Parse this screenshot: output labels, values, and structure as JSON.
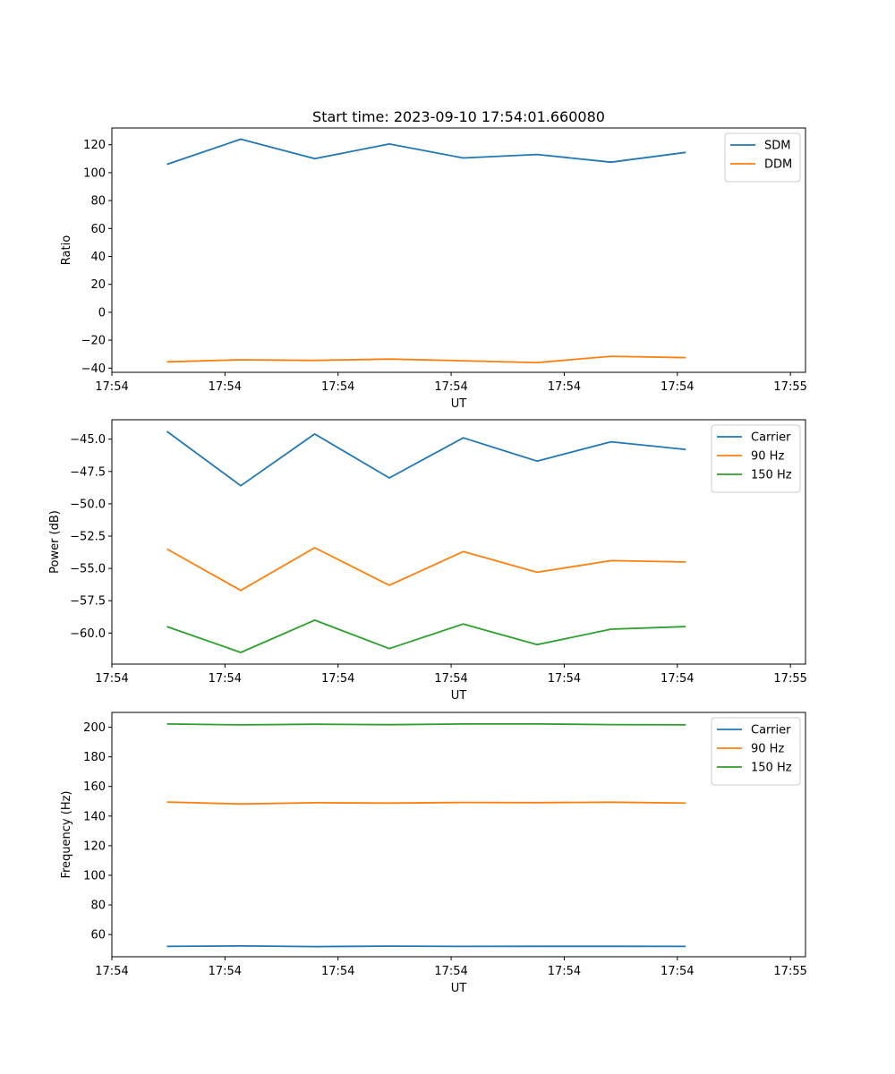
{
  "chart_data": [
    {
      "type": "line",
      "title": "Start time: 2023-09-10 17:54:01.660080",
      "xlabel": "UT",
      "ylabel": "Ratio",
      "xlim": [
        0,
        9.2
      ],
      "ylim": [
        -43,
        132
      ],
      "xticks": [
        0,
        1.5,
        3,
        4.5,
        6,
        7.5,
        9
      ],
      "xtick_labels": [
        "17:54",
        "17:54",
        "17:54",
        "17:54",
        "17:54",
        "17:54",
        "17:55"
      ],
      "yticks": [
        -40,
        -20,
        0,
        20,
        40,
        60,
        80,
        100,
        120
      ],
      "ytick_labels": [
        "−40",
        "−20",
        "0",
        "20",
        "40",
        "60",
        "80",
        "100",
        "120"
      ],
      "x": [
        0.73,
        1.71,
        2.69,
        3.68,
        4.66,
        5.64,
        6.62,
        7.61
      ],
      "legend_position": "top-right",
      "series": [
        {
          "name": "SDM",
          "color": "#1f77b4",
          "values": [
            106,
            124,
            110,
            120.5,
            110.5,
            113,
            107.5,
            114.5
          ]
        },
        {
          "name": "DDM",
          "color": "#ff7f0e",
          "values": [
            -35.5,
            -34,
            -34.5,
            -33.5,
            -34.7,
            -36,
            -31.5,
            -32.5
          ]
        }
      ]
    },
    {
      "type": "line",
      "title": "",
      "xlabel": "UT",
      "ylabel": "Power (dB)",
      "xlim": [
        0,
        9.2
      ],
      "ylim": [
        -62.4,
        -43.5
      ],
      "xticks": [
        0,
        1.5,
        3,
        4.5,
        6,
        7.5,
        9
      ],
      "xtick_labels": [
        "17:54",
        "17:54",
        "17:54",
        "17:54",
        "17:54",
        "17:54",
        "17:55"
      ],
      "yticks": [
        -60.0,
        -57.5,
        -55.0,
        -52.5,
        -50.0,
        -47.5,
        -45.0
      ],
      "ytick_labels": [
        "−60.0",
        "−57.5",
        "−55.0",
        "−52.5",
        "−50.0",
        "−47.5",
        "−45.0"
      ],
      "x": [
        0.73,
        1.71,
        2.69,
        3.68,
        4.66,
        5.64,
        6.62,
        7.61
      ],
      "legend_position": "top-right",
      "series": [
        {
          "name": "Carrier",
          "color": "#1f77b4",
          "values": [
            -44.4,
            -48.6,
            -44.6,
            -48.0,
            -44.9,
            -46.7,
            -45.2,
            -45.8
          ]
        },
        {
          "name": "90 Hz",
          "color": "#ff7f0e",
          "values": [
            -53.5,
            -56.7,
            -53.4,
            -56.3,
            -53.7,
            -55.3,
            -54.4,
            -54.5
          ]
        },
        {
          "name": "150 Hz",
          "color": "#2ca02c",
          "values": [
            -59.5,
            -61.5,
            -59.0,
            -61.2,
            -59.3,
            -60.9,
            -59.7,
            -59.5
          ]
        }
      ]
    },
    {
      "type": "line",
      "title": "",
      "xlabel": "UT",
      "ylabel": "Frequency (Hz)",
      "xlim": [
        0,
        9.2
      ],
      "ylim": [
        45,
        210
      ],
      "xticks": [
        0,
        1.5,
        3,
        4.5,
        6,
        7.5,
        9
      ],
      "xtick_labels": [
        "17:54",
        "17:54",
        "17:54",
        "17:54",
        "17:54",
        "17:54",
        "17:55"
      ],
      "yticks": [
        60,
        80,
        100,
        120,
        140,
        160,
        180,
        200
      ],
      "ytick_labels": [
        "60",
        "80",
        "100",
        "120",
        "140",
        "160",
        "180",
        "200"
      ],
      "x": [
        0.73,
        1.71,
        2.69,
        3.68,
        4.66,
        5.64,
        6.62,
        7.61
      ],
      "legend_position": "top-right",
      "series": [
        {
          "name": "Carrier",
          "color": "#1f77b4",
          "values": [
            52.0,
            52.3,
            51.9,
            52.2,
            52.0,
            52.1,
            52.1,
            52.0
          ]
        },
        {
          "name": "90 Hz",
          "color": "#ff7f0e",
          "values": [
            149.5,
            148.2,
            149.0,
            148.8,
            149.2,
            149.1,
            149.4,
            148.8
          ]
        },
        {
          "name": "150 Hz",
          "color": "#2ca02c",
          "values": [
            202.2,
            201.6,
            202.0,
            201.7,
            202.2,
            202.2,
            201.8,
            201.6
          ]
        }
      ]
    }
  ]
}
